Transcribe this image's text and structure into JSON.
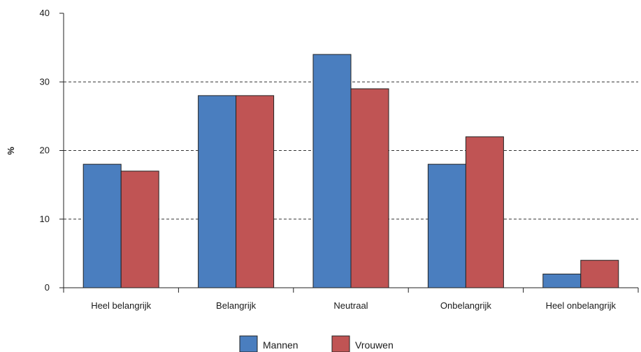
{
  "chart_data": {
    "type": "bar",
    "categories": [
      "Heel belangrijk",
      "Belangrijk",
      "Neutraal",
      "Onbelangrijk",
      "Heel onbelangrijk"
    ],
    "series": [
      {
        "name": "Mannen",
        "color": "#4a7ebf",
        "values": [
          18,
          28,
          34,
          18,
          2
        ]
      },
      {
        "name": "Vrouwen",
        "color": "#c05454",
        "values": [
          17,
          28,
          29,
          22,
          4
        ]
      }
    ],
    "title": "",
    "xlabel": "",
    "ylabel": "%",
    "ylim": [
      0,
      40
    ],
    "yticks": [
      0,
      10,
      20,
      30,
      40
    ],
    "grid": "dashed-horizontal",
    "legend": "bottom-center"
  }
}
